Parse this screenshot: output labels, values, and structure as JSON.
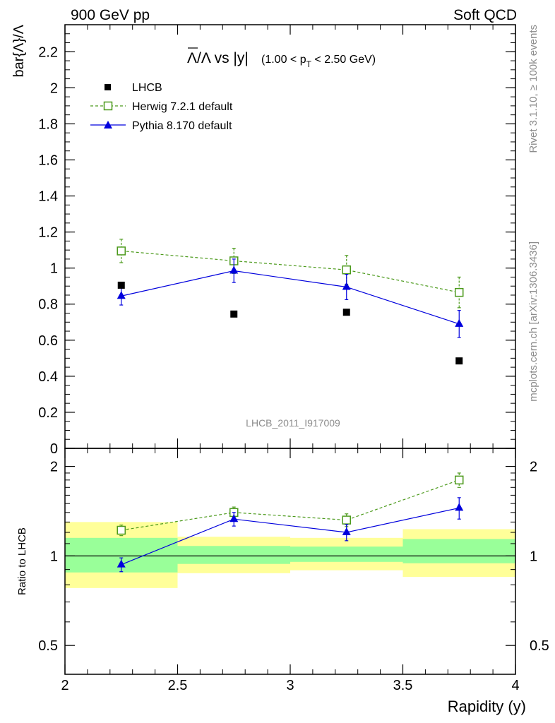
{
  "header": {
    "left": "900 GeV pp",
    "right": "Soft QCD"
  },
  "side_labels": {
    "rivet": "Rivet 3.1.10, ≥ 100k events",
    "mcplots": "mcplots.cern.ch [arXiv:1306.3436]"
  },
  "watermark": "LHCB_2011_I917009",
  "title": {
    "main": "Λ/Λ vs |y|",
    "range_prefix": "(1.00 < p",
    "range_sub": "T",
    "range_suffix": " < 2.50 GeV)"
  },
  "colors": {
    "lhcb": "#000000",
    "herwig": "#4c9a1c",
    "pythia": "#0000dd",
    "band_inner": "#99ff99",
    "band_outer": "#ffff99"
  },
  "chart_data": [
    {
      "type": "scatter",
      "panel": "main",
      "xlabel": "Rapidity (y)",
      "ylabel": "bar{Λ}/Λ",
      "xlim": [
        2,
        4
      ],
      "ylim": [
        0,
        2.35
      ],
      "yticks": [
        "0",
        "0.2",
        "0.4",
        "0.6",
        "0.8",
        "1",
        "1.2",
        "1.4",
        "1.6",
        "1.8",
        "2",
        "2.2"
      ],
      "legend_position": "top-left",
      "series": [
        {
          "name": "LHCB",
          "key": "lhcb",
          "marker": "filled-square",
          "x": [
            2.25,
            2.75,
            3.25,
            3.75
          ],
          "y": [
            0.905,
            0.745,
            0.755,
            0.485
          ],
          "err": [
            0,
            0,
            0,
            0
          ]
        },
        {
          "name": "Herwig 7.2.1 default",
          "key": "herwig",
          "marker": "open-square",
          "line": "dashed",
          "x": [
            2.25,
            2.75,
            3.25,
            3.75
          ],
          "y": [
            1.095,
            1.04,
            0.99,
            0.865
          ],
          "err": [
            0.065,
            0.07,
            0.08,
            0.085
          ]
        },
        {
          "name": "Pythia 8.170 default",
          "key": "pythia",
          "marker": "filled-triangle",
          "line": "solid",
          "x": [
            2.25,
            2.75,
            3.25,
            3.75
          ],
          "y": [
            0.845,
            0.985,
            0.895,
            0.69
          ],
          "err": [
            0.05,
            0.065,
            0.07,
            0.075
          ]
        }
      ]
    },
    {
      "type": "scatter",
      "panel": "ratio",
      "xlabel": "Rapidity (y)",
      "ylabel": "Ratio to LHCB",
      "xlim": [
        2,
        4
      ],
      "ylim": [
        0.4,
        2.3
      ],
      "yscale": "log",
      "xticks": [
        "2",
        "2.5",
        "3",
        "3.5",
        "4"
      ],
      "yticks": [
        "0.5",
        "1",
        "2"
      ],
      "bands": {
        "edges": [
          2,
          2.5,
          3,
          3.5,
          4
        ],
        "inner_low": [
          0.88,
          0.94,
          0.955,
          0.945
        ],
        "inner_high": [
          1.15,
          1.08,
          1.075,
          1.14
        ],
        "outer_low": [
          0.78,
          0.875,
          0.895,
          0.85
        ],
        "outer_high": [
          1.3,
          1.16,
          1.15,
          1.23
        ]
      },
      "series": [
        {
          "name": "Herwig 7.2.1 default",
          "key": "herwig",
          "marker": "open-square",
          "line": "dashed",
          "x": [
            2.25,
            2.75,
            3.25,
            3.75
          ],
          "y": [
            1.22,
            1.4,
            1.32,
            1.8
          ],
          "err": [
            0.05,
            0.06,
            0.065,
            0.1
          ]
        },
        {
          "name": "Pythia 8.170 default",
          "key": "pythia",
          "marker": "filled-triangle",
          "line": "solid",
          "x": [
            2.25,
            2.75,
            3.25,
            3.75
          ],
          "y": [
            0.935,
            1.33,
            1.2,
            1.45
          ],
          "err": [
            0.05,
            0.07,
            0.075,
            0.12
          ]
        }
      ]
    }
  ]
}
